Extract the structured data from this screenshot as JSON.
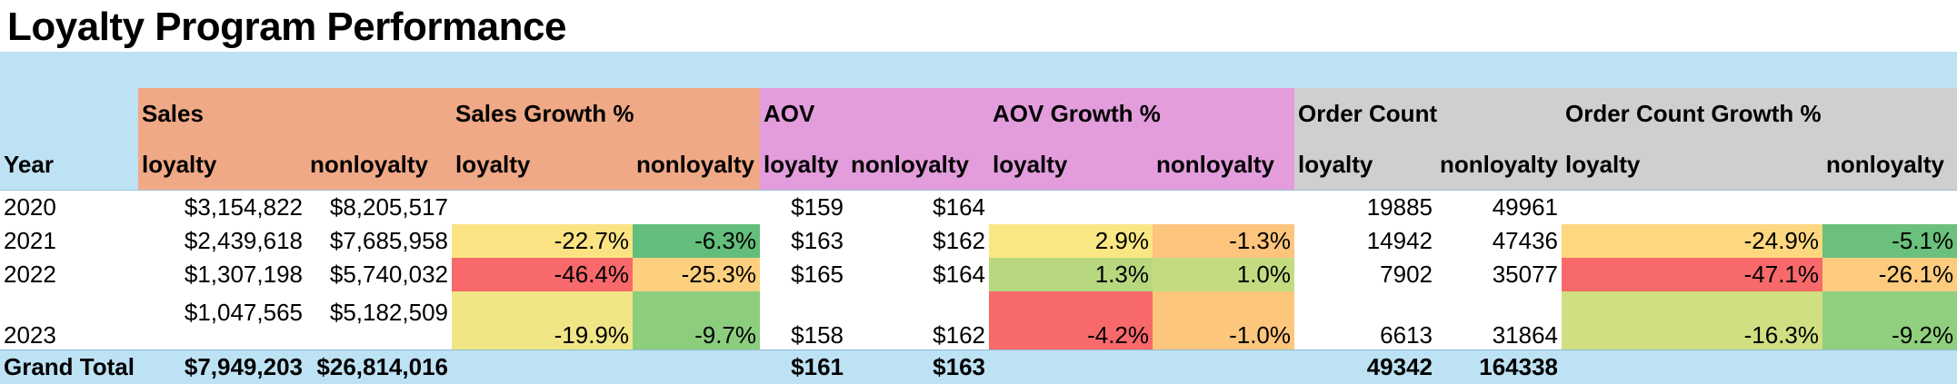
{
  "title": "Loyalty Program Performance",
  "header": {
    "year_label": "Year",
    "groups": [
      "Sales",
      "Sales Growth %",
      "AOV",
      "AOV Growth %",
      "Order Count",
      "Order Count Growth %"
    ],
    "sub": [
      "loyalty",
      "nonloyalty",
      "loyalty",
      "nonloyalty",
      "loyalty",
      "nonloyalty",
      "loyalty",
      "nonloyalty",
      "loyalty",
      "nonloyalty",
      "loyalty",
      "nonloyalty"
    ]
  },
  "rows": [
    {
      "year": "2020",
      "cells": [
        "$3,154,822",
        "$8,205,517",
        "",
        "",
        "$159",
        "$164",
        "",
        "",
        "19885",
        "49961",
        "",
        ""
      ]
    },
    {
      "year": "2021",
      "cells": [
        "$2,439,618",
        "$7,685,958",
        "-22.7%",
        "-6.3%",
        "$163",
        "$162",
        "2.9%",
        "-1.3%",
        "14942",
        "47436",
        "-24.9%",
        "-5.1%"
      ]
    },
    {
      "year": "2022",
      "cells": [
        "$1,307,198",
        "$5,740,032",
        "-46.4%",
        "-25.3%",
        "$165",
        "$164",
        "1.3%",
        "1.0%",
        "7902",
        "35077",
        "-47.1%",
        "-26.1%"
      ]
    },
    {
      "year": "2023",
      "cells": [
        "$1,047,565",
        "$5,182,509",
        "-19.9%",
        "-9.7%",
        "$158",
        "$162",
        "-4.2%",
        "-1.0%",
        "6613",
        "31864",
        "-16.3%",
        "-9.2%"
      ]
    }
  ],
  "total": {
    "label": "Grand Total",
    "cells": [
      "$7,949,203",
      "$26,814,016",
      "",
      "",
      "$161",
      "$163",
      "",
      "",
      "49342",
      "164338",
      "",
      ""
    ]
  },
  "heatmap_colors": {
    "2021": [
      "#fbe283",
      "#63be7b",
      "#f9e783",
      "#fdc47d",
      "#fed780",
      "#6ac07c"
    ],
    "2022": [
      "#f8696b",
      "#fcd07f",
      "#b8d880",
      "#c4dc80",
      "#f8696b",
      "#fdcb7d"
    ],
    "2023": [
      "#f0e685",
      "#8ccd7e",
      "#f8696b",
      "#fdc67d",
      "#d0df82",
      "#8fcf7e"
    ]
  },
  "colors": {
    "header_blue": "#bde2f3",
    "sales_header": "#f0a986",
    "aov_header": "#e39ddc",
    "order_header": "#cfcfcf"
  }
}
